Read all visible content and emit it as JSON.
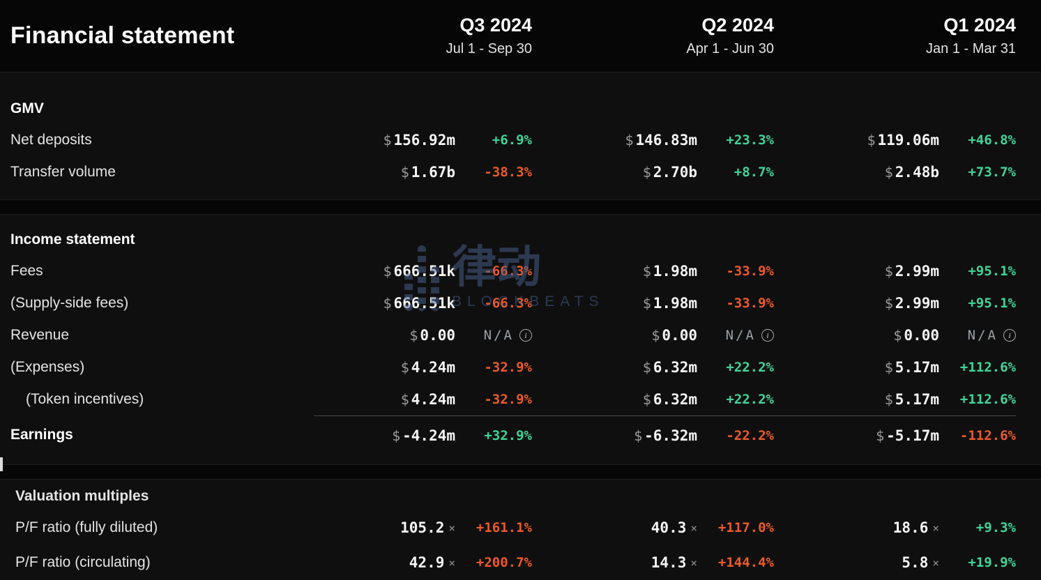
{
  "title": "Financial statement",
  "colors": {
    "positive": "#3dd598",
    "negative": "#eb5a28",
    "na": "#9aa0a6",
    "watermark": "#4a6390"
  },
  "icons": {
    "info": "i"
  },
  "watermark": {
    "zh": "律动",
    "en": "BLOCKBEATS"
  },
  "columns": [
    {
      "quarter": "Q3 2024",
      "range": "Jul 1 - Sep 30"
    },
    {
      "quarter": "Q2 2024",
      "range": "Apr 1 - Jun 30"
    },
    {
      "quarter": "Q1 2024",
      "range": "Jan 1 - Mar 31"
    }
  ],
  "sections": [
    {
      "header": "GMV",
      "rows": [
        {
          "label": "Net deposits",
          "cells": [
            {
              "p": "$",
              "v": "156.92m",
              "c": "+6.9%",
              "d": "pos"
            },
            {
              "p": "$",
              "v": "146.83m",
              "c": "+23.3%",
              "d": "pos"
            },
            {
              "p": "$",
              "v": "119.06m",
              "c": "+46.8%",
              "d": "pos"
            }
          ]
        },
        {
          "label": "Transfer volume",
          "cells": [
            {
              "p": "$",
              "v": "1.67b",
              "c": "-38.3%",
              "d": "neg"
            },
            {
              "p": "$",
              "v": "2.70b",
              "c": "+8.7%",
              "d": "pos"
            },
            {
              "p": "$",
              "v": "2.48b",
              "c": "+73.7%",
              "d": "pos"
            }
          ]
        }
      ]
    },
    {
      "header": "Income statement",
      "rows": [
        {
          "label": "Fees",
          "cells": [
            {
              "p": "$",
              "v": "666.51k",
              "c": "-66.3%",
              "d": "neg"
            },
            {
              "p": "$",
              "v": "1.98m",
              "c": "-33.9%",
              "d": "neg"
            },
            {
              "p": "$",
              "v": "2.99m",
              "c": "+95.1%",
              "d": "pos"
            }
          ]
        },
        {
          "label": "(Supply-side fees)",
          "cells": [
            {
              "p": "$",
              "v": "666.51k",
              "c": "-66.3%",
              "d": "neg"
            },
            {
              "p": "$",
              "v": "1.98m",
              "c": "-33.9%",
              "d": "neg"
            },
            {
              "p": "$",
              "v": "2.99m",
              "c": "+95.1%",
              "d": "pos"
            }
          ]
        },
        {
          "label": "Revenue",
          "cells": [
            {
              "p": "$",
              "v": "0.00",
              "c": "N/A",
              "d": "na",
              "info": true
            },
            {
              "p": "$",
              "v": "0.00",
              "c": "N/A",
              "d": "na",
              "info": true
            },
            {
              "p": "$",
              "v": "0.00",
              "c": "N/A",
              "d": "na",
              "info": true
            }
          ]
        },
        {
          "label": "(Expenses)",
          "cells": [
            {
              "p": "$",
              "v": "4.24m",
              "c": "-32.9%",
              "d": "neg"
            },
            {
              "p": "$",
              "v": "6.32m",
              "c": "+22.2%",
              "d": "pos"
            },
            {
              "p": "$",
              "v": "5.17m",
              "c": "+112.6%",
              "d": "pos"
            }
          ]
        },
        {
          "label": "(Token incentives)",
          "cells": [
            {
              "p": "$",
              "v": "4.24m",
              "c": "-32.9%",
              "d": "neg"
            },
            {
              "p": "$",
              "v": "6.32m",
              "c": "+22.2%",
              "d": "pos"
            },
            {
              "p": "$",
              "v": "5.17m",
              "c": "+112.6%",
              "d": "pos"
            }
          ]
        },
        {
          "label": "Earnings",
          "cells": [
            {
              "p": "$",
              "v": "-4.24m",
              "c": "+32.9%",
              "d": "pos"
            },
            {
              "p": "$",
              "v": "-6.32m",
              "c": "-22.2%",
              "d": "neg"
            },
            {
              "p": "$",
              "v": "-5.17m",
              "c": "-112.6%",
              "d": "neg"
            }
          ]
        }
      ]
    },
    {
      "header": "Valuation multiples",
      "rows": [
        {
          "label": "P/F ratio (fully diluted)",
          "cells": [
            {
              "v": "105.2",
              "s": "×",
              "c": "+161.1%",
              "d": "neg"
            },
            {
              "v": "40.3",
              "s": "×",
              "c": "+117.0%",
              "d": "neg"
            },
            {
              "v": "18.6",
              "s": "×",
              "c": "+9.3%",
              "d": "pos"
            }
          ]
        },
        {
          "label": "P/F ratio (circulating)",
          "cells": [
            {
              "v": "42.9",
              "s": "×",
              "c": "+200.7%",
              "d": "neg"
            },
            {
              "v": "14.3",
              "s": "×",
              "c": "+144.4%",
              "d": "neg"
            },
            {
              "v": "5.8",
              "s": "×",
              "c": "+19.9%",
              "d": "pos"
            }
          ]
        }
      ]
    }
  ]
}
